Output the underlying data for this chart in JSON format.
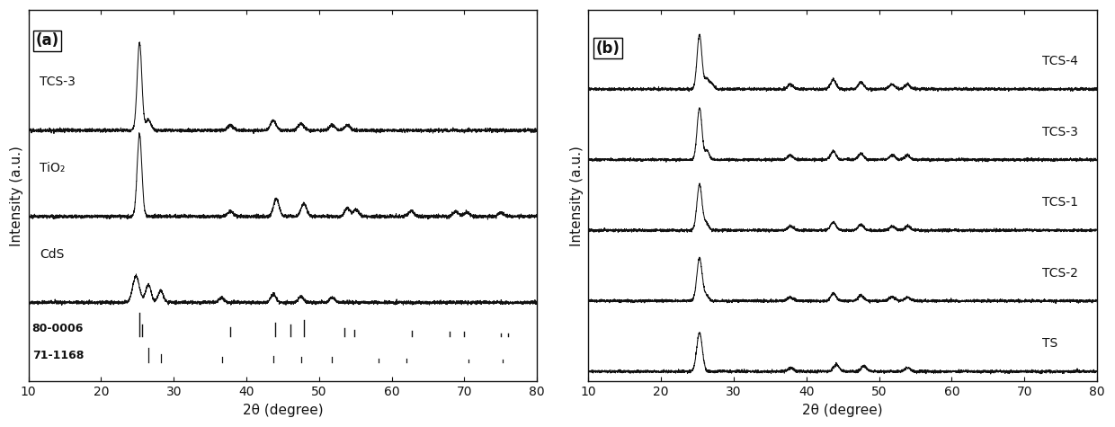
{
  "xlim": [
    10,
    80
  ],
  "xlabel": "2θ (degree)",
  "ylabel": "Intensity (a.u.)",
  "panel_a_labels": [
    "TCS-3",
    "TiO₂",
    "CdS"
  ],
  "panel_b_labels": [
    "TCS-4",
    "TCS-3",
    "TCS-1",
    "TCS-2",
    "TS"
  ],
  "ref_labels": [
    "80-0006",
    "71-1168"
  ],
  "panel_label_a": "(a)",
  "panel_label_b": "(b)",
  "line_color": "#111111",
  "bg_color": "#ffffff",
  "ref_80_0006_peaks": [
    25.28,
    25.6,
    37.8,
    44.0,
    46.0,
    47.9,
    53.5,
    54.9,
    62.7,
    68.0,
    70.0,
    75.0,
    76.0
  ],
  "ref_80_0006_heights": [
    1.0,
    0.5,
    0.4,
    0.6,
    0.5,
    0.7,
    0.35,
    0.3,
    0.25,
    0.2,
    0.2,
    0.15,
    0.15
  ],
  "ref_71_1168_peaks": [
    26.5,
    28.2,
    36.6,
    43.7,
    47.5,
    51.8,
    58.2,
    62.0,
    70.5,
    75.2
  ],
  "ref_71_1168_heights": [
    0.9,
    0.5,
    0.3,
    0.4,
    0.35,
    0.3,
    0.2,
    0.2,
    0.15,
    0.15
  ],
  "seed": 42
}
